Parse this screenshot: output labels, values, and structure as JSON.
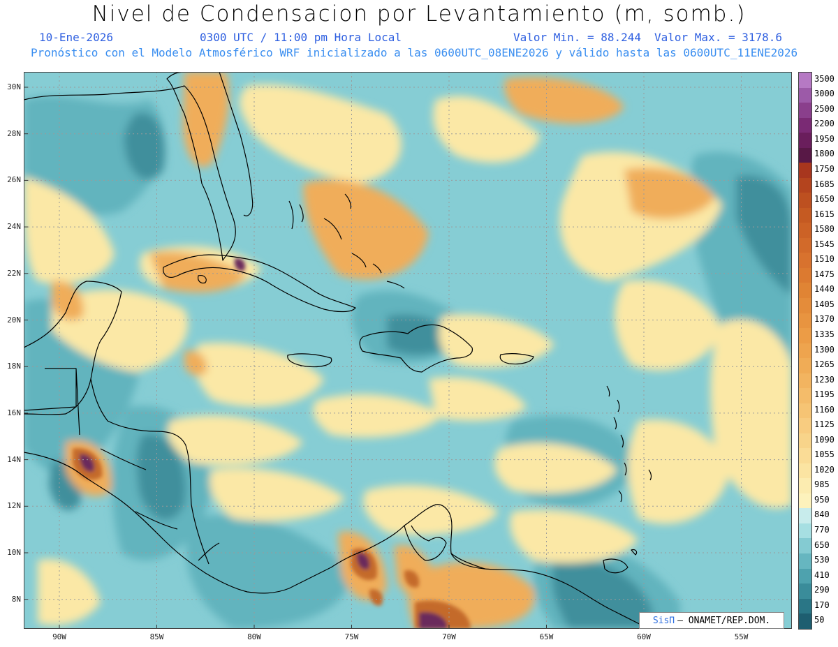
{
  "header": {
    "title": "Nivel de Condensacion por Levantamiento (m, somb.)",
    "date": "10-Ene-2026",
    "time": "0300 UTC / 11:00 pm Hora Local",
    "valmin": "Valor Min. = 88.244",
    "valmax": "Valor Max. = 3178.6",
    "forecast": "Pronóstico con el Modelo Atmosférico WRF inicializado a las 0600UTC_08ENE2026 y válido hasta las  0600UTC_11ENE2026"
  },
  "axes": {
    "lat_labels": [
      "30N",
      "28N",
      "26N",
      "24N",
      "22N",
      "20N",
      "18N",
      "16N",
      "14N",
      "12N",
      "10N",
      "8N"
    ],
    "lon_labels": [
      "90W",
      "85W",
      "80W",
      "75W",
      "70W",
      "65W",
      "60W",
      "55W"
    ]
  },
  "colorbar": {
    "labels": [
      "3500",
      "3000",
      "2500",
      "2200",
      "1950",
      "1800",
      "1750",
      "1685",
      "1650",
      "1615",
      "1580",
      "1545",
      "1510",
      "1475",
      "1440",
      "1405",
      "1370",
      "1335",
      "1300",
      "1265",
      "1230",
      "1195",
      "1160",
      "1125",
      "1090",
      "1055",
      "1020",
      "985",
      "950",
      "840",
      "770",
      "650",
      "530",
      "410",
      "290",
      "170",
      "50"
    ],
    "colors": [
      "#b679c4",
      "#9c5aa8",
      "#8a3f8c",
      "#7a2a74",
      "#6a1e5c",
      "#581846",
      "#a8361e",
      "#b4441e",
      "#bd5020",
      "#c55a22",
      "#cc6226",
      "#d26a2a",
      "#d8722e",
      "#dc7a30",
      "#e08434",
      "#e48c3a",
      "#e89440",
      "#ec9c46",
      "#eea44e",
      "#f0ac56",
      "#f2b460",
      "#f4bc6a",
      "#f6c474",
      "#f8cc80",
      "#f8d48a",
      "#fadc96",
      "#fbe4a2",
      "#fcecb0",
      "#fdf2bc",
      "#c8ecec",
      "#a6dfe2",
      "#84cbd2",
      "#66b6c0",
      "#4ea2ae",
      "#3a8c9a",
      "#2a7686",
      "#1e5e70"
    ]
  },
  "credit": {
    "brand": "SisΠ",
    "text": "– ONAMET/REP.DOM."
  },
  "map_colors": {
    "sea_low": "#86cdd4",
    "sea_mid": "#62b4be",
    "sea_dark": "#3f8f9c",
    "yellow": "#fbe8a6",
    "orange": "#f0ad5a",
    "brown": "#c46a2c",
    "purple": "#6a2a5c",
    "coast": "#000000",
    "grid": "#9a9a9a"
  }
}
